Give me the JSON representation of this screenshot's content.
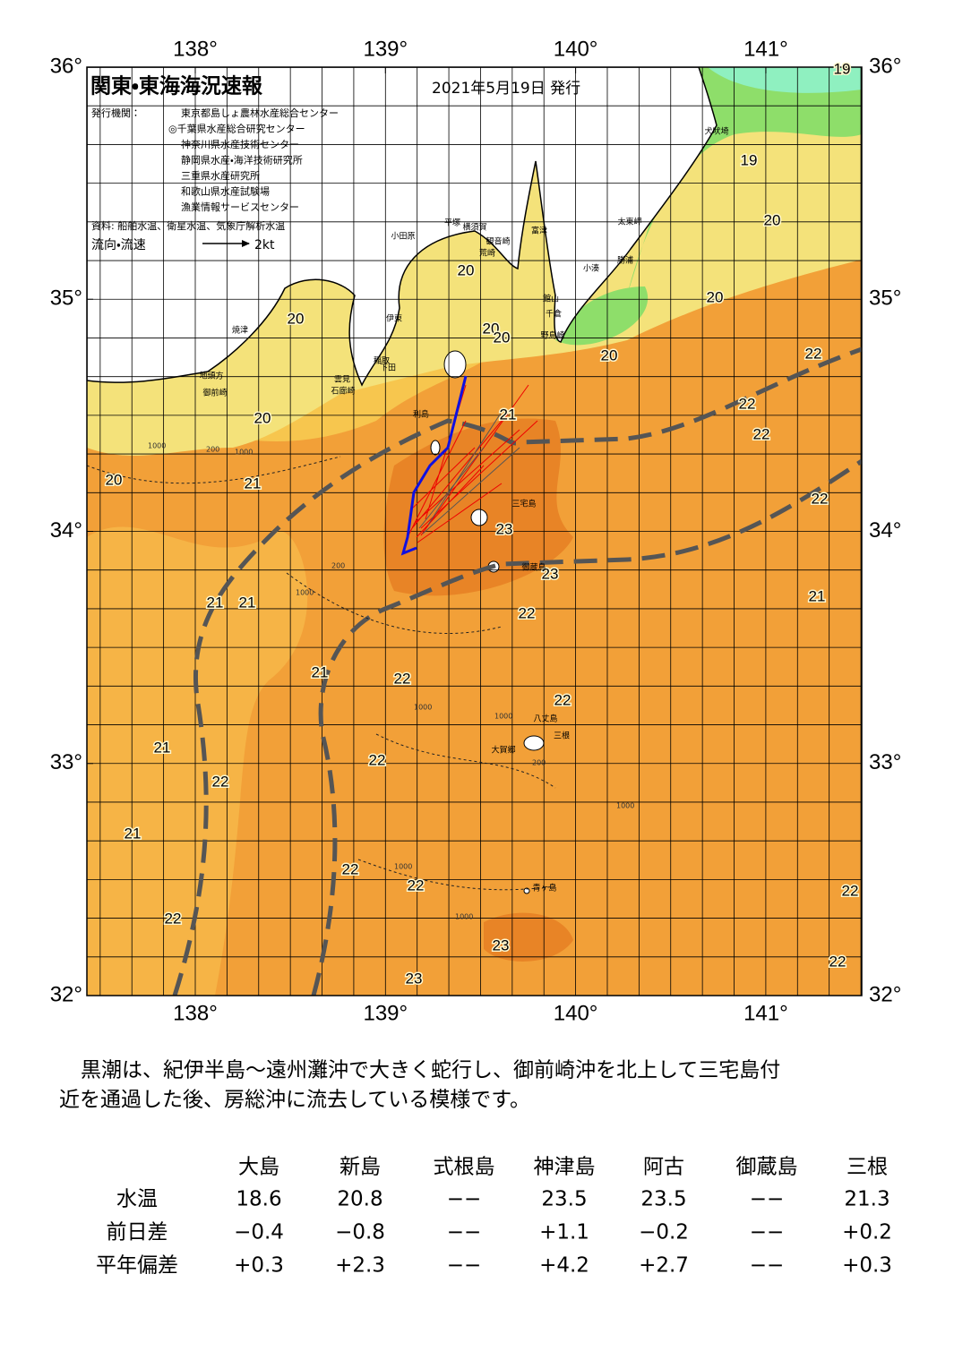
{
  "header": {
    "title": "関東・東海海況速報",
    "date": "2021年5月19日 発行"
  },
  "publishers": {
    "label": "発行機関：",
    "items": [
      "東京都島しょ農林水産総合センター",
      "◎千葉県水産総合研究センター",
      "神奈川県水産技術センター",
      "静岡県水産・海洋技術研究所",
      "三重県水産研究所",
      "和歌山県水産試験場",
      "漁業情報サービスセンター"
    ]
  },
  "source": "資料: 船舶水温、衛星水温、気象庁解析水温",
  "legend": {
    "label": "流向・流速",
    "scale": "2kt"
  },
  "map": {
    "lon_ticks": [
      {
        "value": 138,
        "label": "138°"
      },
      {
        "value": 139,
        "label": "139°"
      },
      {
        "value": 140,
        "label": "140°"
      },
      {
        "value": 141,
        "label": "141°"
      }
    ],
    "lat_ticks": [
      {
        "value": 36,
        "label": "36°"
      },
      {
        "value": 35,
        "label": "35°"
      },
      {
        "value": 34,
        "label": "34°"
      },
      {
        "value": 33,
        "label": "33°"
      },
      {
        "value": 32,
        "label": "32°"
      }
    ],
    "temperature_labels": [
      "19",
      "19",
      "20",
      "20",
      "20",
      "20",
      "20",
      "20",
      "20",
      "20",
      "20",
      "21",
      "21",
      "22",
      "22",
      "22",
      "22",
      "23",
      "23",
      "22",
      "21",
      "21",
      "21",
      "21",
      "22",
      "22",
      "21",
      "22",
      "22",
      "21",
      "22",
      "22",
      "22",
      "22",
      "23",
      "22",
      "23"
    ],
    "place_names": [
      "犬吠埼",
      "太東岬",
      "勝浦",
      "小湊",
      "富津",
      "横須賀",
      "観音崎",
      "平塚",
      "小田原",
      "荒崎",
      "館山",
      "千倉",
      "野島崎",
      "伊東",
      "焼津",
      "地頭方",
      "御前崎",
      "稲取",
      "下田",
      "雲見",
      "石廊崎",
      "利島",
      "三宅島",
      "御蔵島",
      "八丈島",
      "三根",
      "大賀郷",
      "青ヶ島"
    ],
    "depth_labels": [
      "1000",
      "200",
      "1000",
      "1000",
      "200",
      "1000",
      "1000",
      "200",
      "1000",
      "1000",
      "1000"
    ]
  },
  "description": [
    "黒潮は、紀伊半島～遠州灘沖で大きく蛇行し、御前崎沖を北上して三宅島付",
    "近を通過した後、房総沖に流去している模様です。"
  ],
  "table": {
    "columns": [
      "大島",
      "新島",
      "式根島",
      "神津島",
      "阿古",
      "御蔵島",
      "三根"
    ],
    "rows": [
      {
        "label": "水温",
        "values": [
          "18.6",
          "20.8",
          "−−",
          "23.5",
          "23.5",
          "−−",
          "21.3"
        ]
      },
      {
        "label": "前日差",
        "values": [
          "−0.4",
          "−0.8",
          "−−",
          "+1.1",
          "−0.2",
          "−−",
          "+0.2"
        ]
      },
      {
        "label": "平年偏差",
        "values": [
          "+0.3",
          "+2.3",
          "−−",
          "+4.2",
          "+2.7",
          "−−",
          "+0.3"
        ]
      }
    ]
  }
}
